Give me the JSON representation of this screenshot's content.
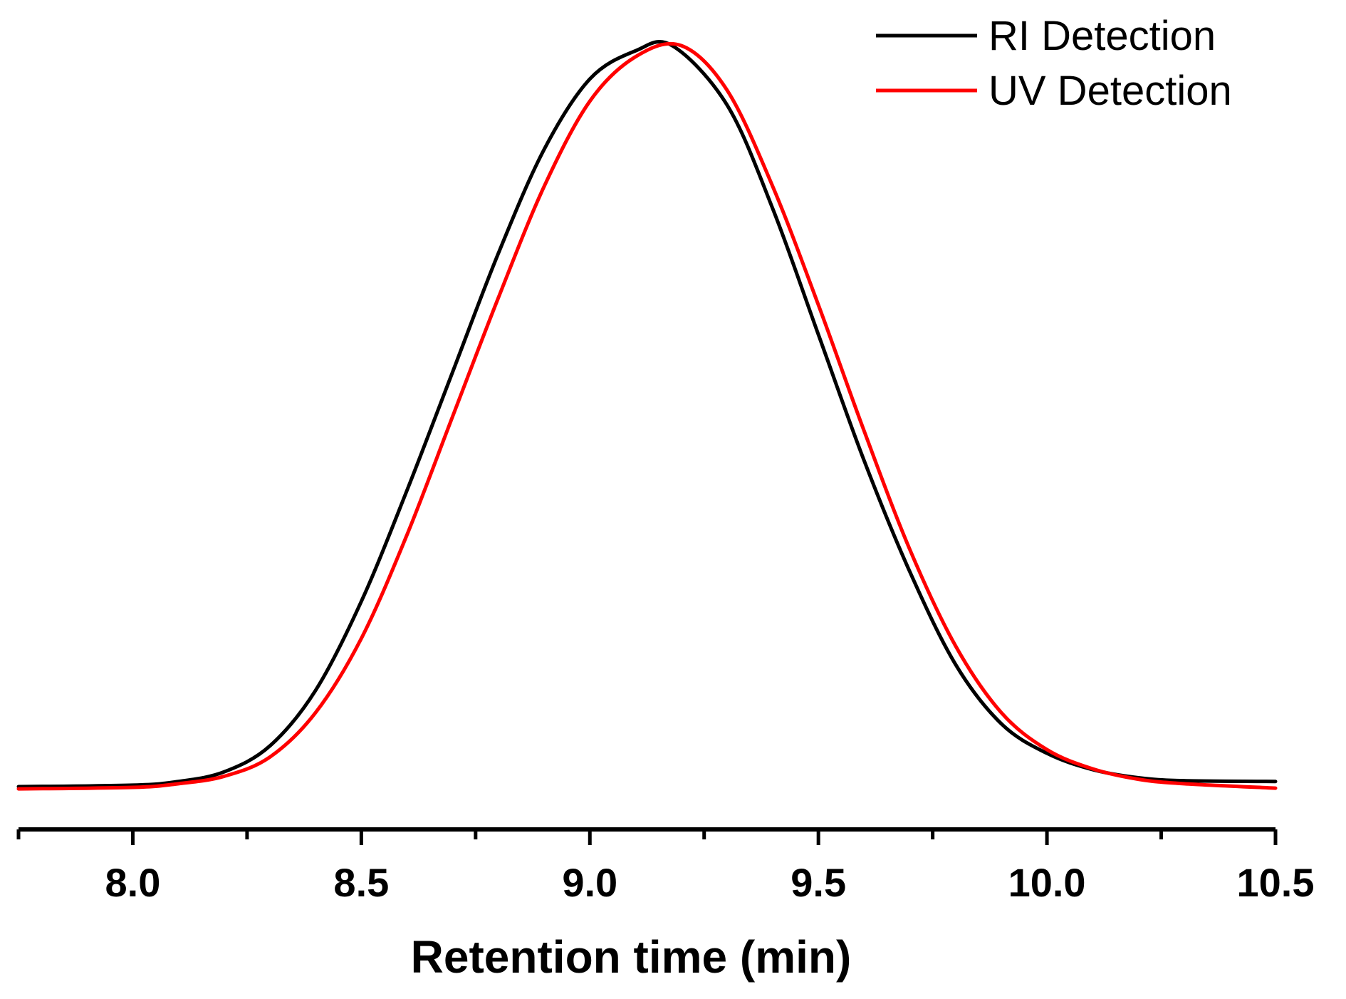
{
  "chart_data": {
    "type": "line",
    "title": "",
    "xlabel": "Retention time (min)",
    "ylabel": "",
    "xlim": [
      7.75,
      10.5
    ],
    "ylim": [
      0,
      1
    ],
    "x_ticks": [
      8.0,
      8.5,
      9.0,
      9.5,
      10.0,
      10.5
    ],
    "x_tick_labels": [
      "8.0",
      "8.5",
      "9.0",
      "9.5",
      "10.0",
      "10.5"
    ],
    "x_minor_ticks": [
      7.75,
      8.25,
      8.75,
      9.25,
      9.75,
      10.25
    ],
    "y_axis_visible": false,
    "grid": false,
    "legend_position": "top-right",
    "series": [
      {
        "name": "RI Detection",
        "color": "#000000",
        "x": [
          7.75,
          8.0,
          8.1,
          8.2,
          8.3,
          8.4,
          8.5,
          8.6,
          8.7,
          8.8,
          8.9,
          9.0,
          9.1,
          9.18,
          9.3,
          9.4,
          9.5,
          9.6,
          9.7,
          9.8,
          9.9,
          10.0,
          10.1,
          10.2,
          10.3,
          10.5
        ],
        "y": [
          0.0,
          0.002,
          0.007,
          0.02,
          0.055,
          0.13,
          0.25,
          0.4,
          0.56,
          0.72,
          0.86,
          0.955,
          0.993,
          1.0,
          0.92,
          0.78,
          0.61,
          0.44,
          0.29,
          0.165,
          0.085,
          0.045,
          0.023,
          0.012,
          0.008,
          0.007
        ]
      },
      {
        "name": "UV Detection",
        "color": "#ff0000",
        "x": [
          7.75,
          8.0,
          8.1,
          8.2,
          8.3,
          8.4,
          8.5,
          8.6,
          8.7,
          8.8,
          8.9,
          9.0,
          9.1,
          9.2,
          9.3,
          9.4,
          9.5,
          9.6,
          9.7,
          9.8,
          9.9,
          10.0,
          10.1,
          10.2,
          10.3,
          10.5
        ],
        "y": [
          -0.003,
          -0.001,
          0.004,
          0.014,
          0.04,
          0.1,
          0.2,
          0.34,
          0.5,
          0.66,
          0.81,
          0.925,
          0.985,
          1.0,
          0.94,
          0.81,
          0.65,
          0.48,
          0.32,
          0.19,
          0.1,
          0.05,
          0.024,
          0.01,
          0.004,
          -0.002
        ]
      }
    ]
  }
}
